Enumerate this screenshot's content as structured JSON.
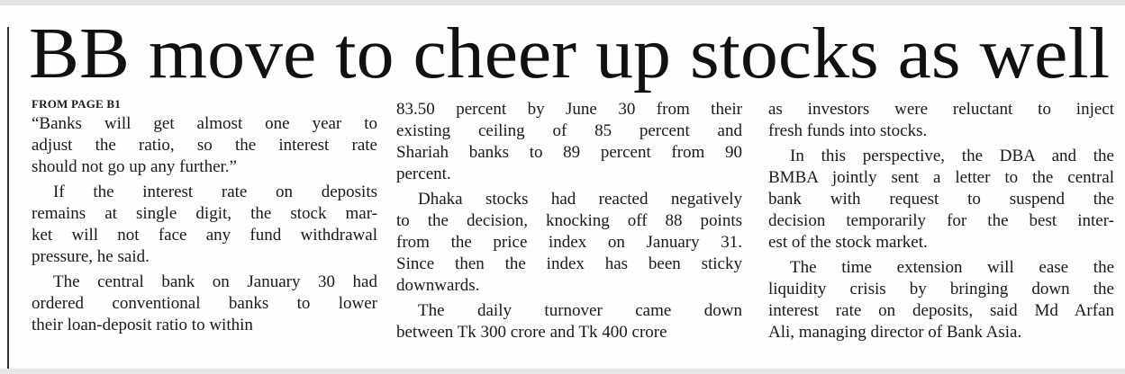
{
  "headline": "BB move to cheer up stocks as well",
  "kicker": "FROM PAGE B1",
  "columns": [
    {
      "paragraphs": [
        {
          "lines": [
            "“Banks will get almost one year to",
            "adjust the ratio, so the interest rate",
            "should not go up any further.”"
          ]
        },
        {
          "lines": [
            "If the interest rate on deposits",
            "remains at single digit, the stock mar-",
            "ket will not face any fund withdrawal",
            "pressure, he said."
          ]
        },
        {
          "lines": [
            "The central bank on January 30 had",
            "ordered conventional banks to lower",
            "their loan-deposit ratio to within"
          ]
        }
      ]
    },
    {
      "paragraphs": [
        {
          "lines": [
            "83.50 percent by June 30 from their",
            "existing ceiling of 85 percent and",
            "Shariah banks to 89 percent from 90",
            "percent."
          ]
        },
        {
          "lines": [
            "Dhaka stocks had reacted negatively",
            "to the decision, knocking off 88 points",
            "from the price index on January 31.",
            "Since then the index has been sticky",
            "downwards."
          ]
        },
        {
          "lines": [
            "The daily turnover came down",
            "between Tk 300 crore and Tk 400 crore"
          ]
        }
      ]
    },
    {
      "paragraphs": [
        {
          "lines": [
            "as investors were reluctant to inject",
            "fresh funds into stocks."
          ]
        },
        {
          "lines": [
            "In this perspective, the DBA and the",
            "BMBA jointly sent a letter to the central",
            "bank with request to suspend the",
            "decision temporarily for the best inter-",
            "est of the stock market."
          ]
        },
        {
          "lines": [
            "The time extension will ease the",
            "liquidity crisis by bringing down the",
            "interest rate on deposits, said Md Arfan",
            "Ali, managing director of Bank Asia."
          ]
        }
      ]
    }
  ]
}
